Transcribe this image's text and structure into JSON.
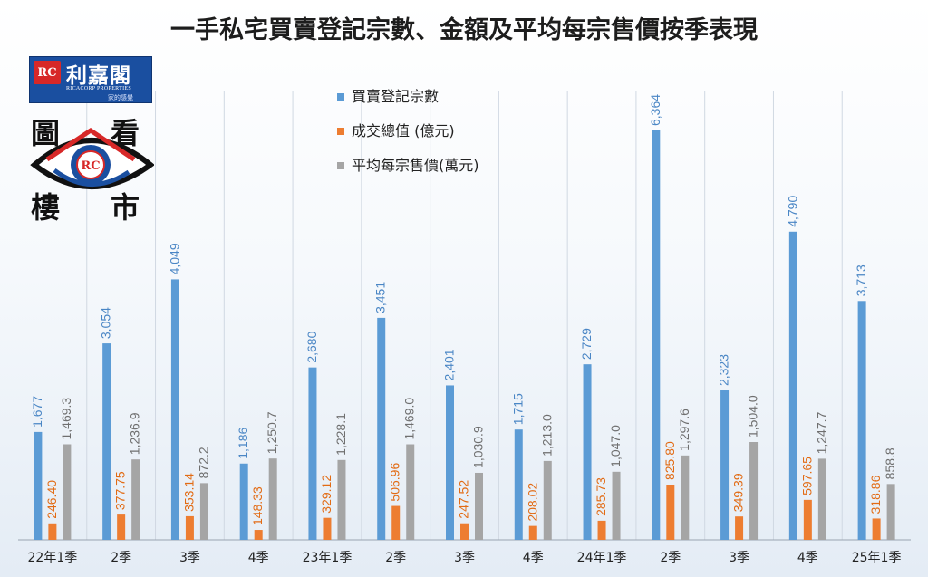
{
  "chart_data": {
    "type": "bar",
    "title": "一手私宅買賣登記宗數、金額及平均每宗售價按季表現",
    "categories": [
      "22年1季",
      "2季",
      "3季",
      "4季",
      "23年1季",
      "2季",
      "3季",
      "4季",
      "24年1季",
      "2季",
      "3季",
      "4季",
      "25年1季"
    ],
    "series": [
      {
        "name": "買賣登記宗數",
        "color": "#5b9bd5",
        "values": [
          1677,
          3054,
          4049,
          1186,
          2680,
          3451,
          2401,
          1715,
          2729,
          6364,
          2323,
          4790,
          3713
        ],
        "labels": [
          "1,677",
          "3,054",
          "4,049",
          "1,186",
          "2,680",
          "3,451",
          "2,401",
          "1,715",
          "2,729",
          "6,364",
          "2,323",
          "4,790",
          "3,713"
        ]
      },
      {
        "name": "成交總值 (億元)",
        "color": "#ed7d31",
        "values": [
          246.4,
          377.75,
          353.14,
          148.33,
          329.12,
          506.96,
          247.52,
          208.02,
          285.73,
          825.8,
          349.39,
          597.65,
          318.86
        ],
        "labels": [
          "246.40",
          "377.75",
          "353.14",
          "148.33",
          "329.12",
          "506.96",
          "247.52",
          "208.02",
          "285.73",
          "825.80",
          "349.39",
          "597.65",
          "318.86"
        ]
      },
      {
        "name": "平均每宗售價(萬元)",
        "color": "#a5a5a5",
        "values": [
          1469.3,
          1236.9,
          872.2,
          1250.7,
          1228.1,
          1469.0,
          1030.9,
          1213.0,
          1047.0,
          1297.6,
          1504.0,
          1247.7,
          858.8
        ],
        "labels": [
          "1,469.3",
          "1,236.9",
          "872.2",
          "1,250.7",
          "1,228.1",
          "1,469.0",
          "1,030.9",
          "1,213.0",
          "1,047.0",
          "1,297.6",
          "1,504.0",
          "1,247.7",
          "858.8"
        ]
      }
    ],
    "ylim": [
      0,
      6900
    ],
    "grid": false,
    "legend_position": "top-center"
  },
  "logo": {
    "name": "利嘉閣",
    "mark": "RC",
    "english": "RICACORP PROPERTIES",
    "tagline": "家的感覺"
  },
  "stamp": {
    "chars": [
      "圖",
      "看",
      "樓",
      "市"
    ],
    "mark": "RC"
  }
}
